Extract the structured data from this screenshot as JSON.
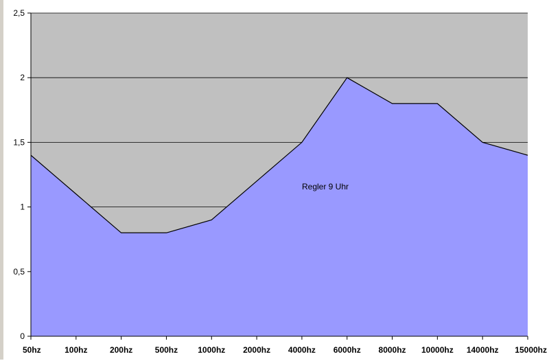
{
  "chart_data": {
    "type": "area",
    "categories": [
      "50hz",
      "100hz",
      "200hz",
      "500hz",
      "1000hz",
      "2000hz",
      "4000hz",
      "6000hz",
      "8000hz",
      "10000hz",
      "14000hz",
      "15000hz"
    ],
    "series": [
      {
        "name": "Regler 9 Uhr",
        "values": [
          1.4,
          1.1,
          0.8,
          0.8,
          0.9,
          1.2,
          1.5,
          2.0,
          1.8,
          1.8,
          1.5,
          1.4
        ]
      }
    ],
    "ylim": [
      0,
      2.5
    ],
    "yticks": [
      "0",
      "0,5",
      "1",
      "1,5",
      "2",
      "2,5"
    ],
    "ytick_values": [
      0,
      0.5,
      1,
      1.5,
      2,
      2.5
    ],
    "grid": true,
    "annotation": "Regler 9 Uhr",
    "colors": {
      "plot_background": "#c0c0c0",
      "area_fill": "#9999ff",
      "line": "#000000",
      "grid": "#000000"
    }
  }
}
